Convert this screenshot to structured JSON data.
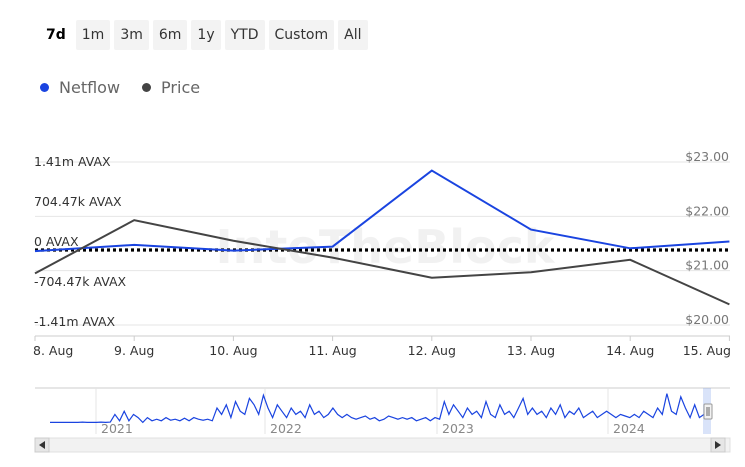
{
  "range_selector": {
    "buttons": [
      "7d",
      "1m",
      "3m",
      "6m",
      "1y",
      "YTD",
      "Custom",
      "All"
    ],
    "active": "7d"
  },
  "colors": {
    "netflow": "#1a44e0",
    "price": "#444444",
    "zero_line": "#000000"
  },
  "watermark": "IntoTheBlock",
  "chart_data": {
    "type": "line",
    "categories": [
      "8. Aug",
      "9. Aug",
      "10. Aug",
      "11. Aug",
      "12. Aug",
      "13. Aug",
      "14. Aug",
      "15. Aug"
    ],
    "series": [
      {
        "name": "Netflow",
        "axis": "left",
        "values": [
          -20000,
          90000,
          -10000,
          60000,
          1400000,
          360000,
          30000,
          150000
        ]
      },
      {
        "name": "Price",
        "axis": "right",
        "values": [
          20.95,
          21.93,
          21.55,
          21.24,
          20.87,
          20.97,
          21.2,
          20.38
        ]
      }
    ],
    "y_left": {
      "ticks": [
        "1.41m AVAX",
        "704.47k AVAX",
        "0 AVAX",
        "-704.47k AVAX",
        "-1.41m AVAX"
      ],
      "tick_values": [
        1410000,
        704470,
        0,
        -704470,
        -1410000
      ]
    },
    "y_right": {
      "ticks": [
        "$23.00",
        "$22.00",
        "$21.00",
        "$20.00"
      ],
      "tick_values": [
        23,
        22,
        21,
        20
      ]
    },
    "zero_line": "dotted",
    "legend": "top-left",
    "navigator": {
      "year_labels": [
        "2021",
        "2022",
        "2023",
        "2024"
      ],
      "values": [
        0.05,
        0.05,
        0.05,
        0.05,
        0.05,
        0.05,
        0.05,
        0.06,
        0.05,
        0.05,
        0.05,
        0.06,
        0.05,
        0.06,
        0.3,
        0.1,
        0.4,
        0.1,
        0.3,
        0.2,
        0.05,
        0.2,
        0.1,
        0.15,
        0.1,
        0.2,
        0.12,
        0.15,
        0.1,
        0.18,
        0.1,
        0.2,
        0.15,
        0.12,
        0.15,
        0.1,
        0.5,
        0.3,
        0.6,
        0.2,
        0.7,
        0.4,
        0.3,
        0.8,
        0.6,
        0.3,
        0.9,
        0.5,
        0.2,
        0.6,
        0.4,
        0.2,
        0.5,
        0.3,
        0.4,
        0.2,
        0.6,
        0.3,
        0.4,
        0.2,
        0.3,
        0.5,
        0.3,
        0.2,
        0.3,
        0.2,
        0.15,
        0.2,
        0.25,
        0.15,
        0.2,
        0.1,
        0.15,
        0.25,
        0.2,
        0.15,
        0.2,
        0.15,
        0.2,
        0.1,
        0.15,
        0.2,
        0.1,
        0.2,
        0.15,
        0.7,
        0.3,
        0.6,
        0.4,
        0.2,
        0.5,
        0.3,
        0.4,
        0.2,
        0.7,
        0.3,
        0.2,
        0.6,
        0.3,
        0.4,
        0.2,
        0.5,
        0.8,
        0.3,
        0.5,
        0.3,
        0.4,
        0.2,
        0.5,
        0.3,
        0.6,
        0.2,
        0.4,
        0.3,
        0.5,
        0.2,
        0.3,
        0.4,
        0.2,
        0.3,
        0.4,
        0.3,
        0.2,
        0.3,
        0.25,
        0.2,
        0.3,
        0.2,
        0.4,
        0.3,
        0.2,
        0.5,
        0.3,
        0.95,
        0.4,
        0.3,
        0.85,
        0.5,
        0.2,
        0.6,
        0.2,
        0.3
      ]
    }
  }
}
